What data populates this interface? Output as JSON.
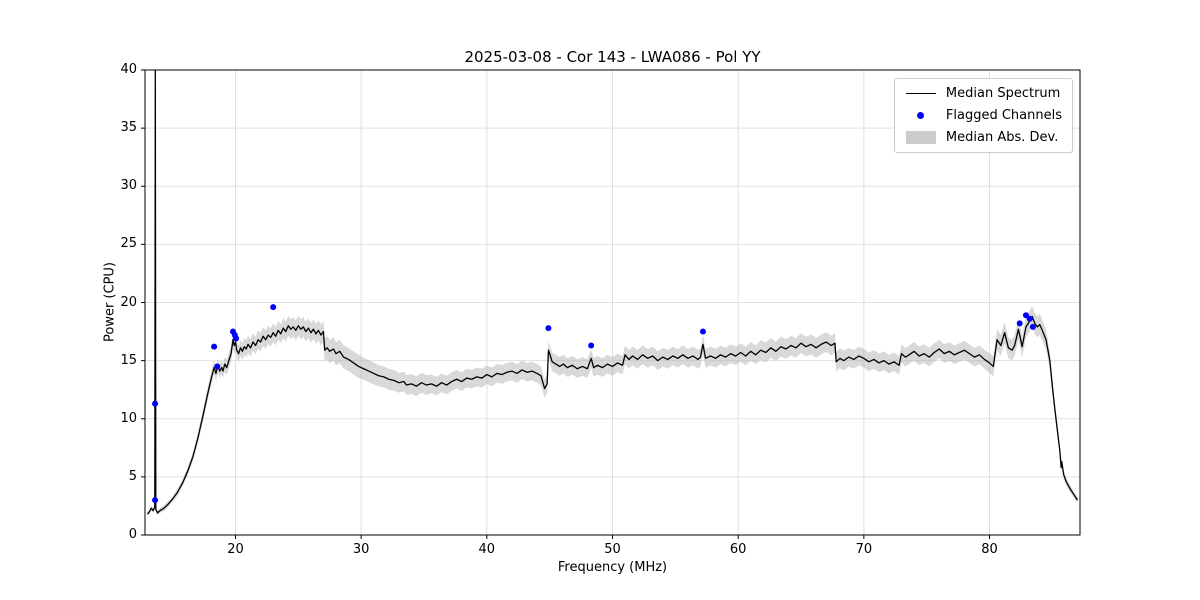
{
  "colors": {
    "line": "#000000",
    "flagged": "#0000ff",
    "band": "#b3b3b3",
    "band_opacity": 0.5,
    "grid": "#e0e0e0",
    "spine": "#000000",
    "background": "#ffffff"
  },
  "chart_data": {
    "type": "line",
    "title": "2025-03-08 - Cor 143 - LWA086 - Pol YY",
    "xlabel": "Frequency (MHz)",
    "ylabel": "Power (CPU)",
    "xlim": [
      12.8,
      87.2
    ],
    "ylim": [
      0,
      40
    ],
    "x_ticks": [
      20,
      30,
      40,
      50,
      60,
      70,
      80
    ],
    "y_ticks": [
      0,
      5,
      10,
      15,
      20,
      25,
      30,
      35,
      40
    ],
    "grid": true,
    "legend_position": "upper right",
    "legend_labels": [
      "Median Spectrum",
      "Flagged Channels",
      "Median Abs. Dev."
    ],
    "series_notes": "spectrum_points are [frequency_MHz, median_power_CPU, median_abs_dev]; flagged_points are [frequency_MHz, power_CPU]",
    "spectrum_points": [
      [
        13.0,
        1.8,
        0.2
      ],
      [
        13.15,
        2.0,
        0.2
      ],
      [
        13.3,
        2.3,
        0.2
      ],
      [
        13.45,
        2.1,
        0.2
      ],
      [
        13.58,
        2.4,
        0.2
      ],
      [
        13.62,
        40.0,
        0.2
      ],
      [
        13.66,
        2.2,
        0.2
      ],
      [
        13.8,
        1.9,
        0.2
      ],
      [
        14.0,
        2.1,
        0.2
      ],
      [
        14.3,
        2.3,
        0.25
      ],
      [
        14.6,
        2.6,
        0.25
      ],
      [
        15.0,
        3.1,
        0.25
      ],
      [
        15.4,
        3.7,
        0.3
      ],
      [
        15.8,
        4.5,
        0.3
      ],
      [
        16.2,
        5.5,
        0.35
      ],
      [
        16.6,
        6.7,
        0.4
      ],
      [
        17.0,
        8.3,
        0.45
      ],
      [
        17.4,
        10.2,
        0.5
      ],
      [
        17.8,
        12.2,
        0.55
      ],
      [
        18.1,
        13.6,
        0.6
      ],
      [
        18.3,
        14.4,
        0.6
      ],
      [
        18.45,
        13.9,
        0.6
      ],
      [
        18.6,
        14.6,
        0.6
      ],
      [
        18.75,
        14.1,
        0.6
      ],
      [
        18.9,
        14.4,
        0.6
      ],
      [
        19.0,
        14.1,
        0.6
      ],
      [
        19.15,
        14.7,
        0.65
      ],
      [
        19.3,
        14.4,
        0.65
      ],
      [
        19.5,
        15.1,
        0.7
      ],
      [
        19.65,
        15.6,
        0.7
      ],
      [
        19.8,
        16.8,
        0.7
      ],
      [
        19.9,
        16.3,
        0.7
      ],
      [
        20.0,
        16.6,
        0.7
      ],
      [
        20.1,
        15.9,
        0.7
      ],
      [
        20.25,
        15.6,
        0.7
      ],
      [
        20.4,
        16.1,
        0.7
      ],
      [
        20.55,
        15.8,
        0.75
      ],
      [
        20.7,
        16.2,
        0.75
      ],
      [
        20.85,
        16.0,
        0.75
      ],
      [
        21.0,
        16.4,
        0.75
      ],
      [
        21.2,
        16.1,
        0.75
      ],
      [
        21.4,
        16.6,
        0.75
      ],
      [
        21.6,
        16.3,
        0.75
      ],
      [
        21.8,
        16.8,
        0.8
      ],
      [
        22.0,
        16.6,
        0.8
      ],
      [
        22.2,
        17.1,
        0.8
      ],
      [
        22.4,
        16.8,
        0.8
      ],
      [
        22.6,
        17.2,
        0.8
      ],
      [
        22.8,
        17.0,
        0.8
      ],
      [
        23.0,
        17.4,
        0.8
      ],
      [
        23.2,
        17.1,
        0.8
      ],
      [
        23.4,
        17.6,
        0.8
      ],
      [
        23.6,
        17.3,
        0.8
      ],
      [
        23.8,
        17.8,
        0.85
      ],
      [
        24.0,
        17.5,
        0.85
      ],
      [
        24.2,
        18.0,
        0.85
      ],
      [
        24.4,
        17.7,
        0.85
      ],
      [
        24.6,
        17.9,
        0.85
      ],
      [
        24.8,
        17.6,
        0.85
      ],
      [
        25.0,
        18.0,
        0.85
      ],
      [
        25.2,
        17.7,
        0.85
      ],
      [
        25.4,
        17.9,
        0.85
      ],
      [
        25.6,
        17.5,
        0.85
      ],
      [
        25.8,
        17.8,
        0.85
      ],
      [
        26.0,
        17.4,
        0.85
      ],
      [
        26.2,
        17.7,
        0.85
      ],
      [
        26.4,
        17.3,
        0.85
      ],
      [
        26.6,
        17.6,
        0.85
      ],
      [
        26.8,
        17.2,
        0.9
      ],
      [
        27.0,
        17.5,
        0.9
      ],
      [
        27.1,
        15.9,
        1.0
      ],
      [
        27.3,
        16.1,
        1.0
      ],
      [
        27.5,
        15.8,
        1.0
      ],
      [
        27.8,
        16.0,
        1.0
      ],
      [
        28.0,
        15.6,
        1.0
      ],
      [
        28.3,
        15.8,
        1.0
      ],
      [
        28.6,
        15.3,
        1.0
      ],
      [
        29.0,
        15.1,
        1.0
      ],
      [
        29.4,
        14.8,
        1.0
      ],
      [
        29.8,
        14.5,
        1.0
      ],
      [
        30.2,
        14.3,
        0.95
      ],
      [
        30.6,
        14.1,
        0.95
      ],
      [
        31.0,
        13.9,
        0.95
      ],
      [
        31.4,
        13.7,
        0.9
      ],
      [
        31.8,
        13.6,
        0.9
      ],
      [
        32.2,
        13.4,
        0.9
      ],
      [
        32.6,
        13.3,
        0.9
      ],
      [
        33.0,
        13.1,
        0.85
      ],
      [
        33.4,
        13.2,
        0.85
      ],
      [
        33.6,
        12.9,
        0.85
      ],
      [
        34.0,
        13.0,
        0.85
      ],
      [
        34.4,
        12.8,
        0.85
      ],
      [
        34.8,
        13.1,
        0.85
      ],
      [
        35.2,
        12.9,
        0.85
      ],
      [
        35.6,
        13.0,
        0.8
      ],
      [
        36.0,
        12.8,
        0.8
      ],
      [
        36.4,
        13.1,
        0.8
      ],
      [
        36.8,
        12.9,
        0.8
      ],
      [
        37.2,
        13.2,
        0.8
      ],
      [
        37.6,
        13.4,
        0.8
      ],
      [
        38.0,
        13.2,
        0.8
      ],
      [
        38.4,
        13.5,
        0.8
      ],
      [
        38.8,
        13.4,
        0.8
      ],
      [
        39.2,
        13.6,
        0.8
      ],
      [
        39.6,
        13.5,
        0.8
      ],
      [
        40.0,
        13.8,
        0.8
      ],
      [
        40.4,
        13.6,
        0.8
      ],
      [
        40.8,
        13.9,
        0.8
      ],
      [
        41.2,
        13.8,
        0.8
      ],
      [
        41.6,
        14.0,
        0.8
      ],
      [
        42.0,
        14.1,
        0.8
      ],
      [
        42.4,
        13.9,
        0.8
      ],
      [
        42.8,
        14.2,
        0.8
      ],
      [
        43.2,
        14.0,
        0.8
      ],
      [
        43.6,
        14.1,
        0.8
      ],
      [
        44.0,
        13.9,
        0.8
      ],
      [
        44.3,
        13.7,
        0.8
      ],
      [
        44.6,
        12.6,
        0.8
      ],
      [
        44.8,
        13.0,
        0.8
      ],
      [
        44.9,
        15.9,
        0.8
      ],
      [
        45.0,
        15.6,
        0.8
      ],
      [
        45.2,
        14.9,
        0.8
      ],
      [
        45.5,
        14.7,
        0.8
      ],
      [
        45.8,
        14.5,
        0.8
      ],
      [
        46.1,
        14.7,
        0.8
      ],
      [
        46.4,
        14.4,
        0.8
      ],
      [
        46.8,
        14.6,
        0.8
      ],
      [
        47.2,
        14.3,
        0.8
      ],
      [
        47.6,
        14.5,
        0.8
      ],
      [
        48.0,
        14.3,
        0.8
      ],
      [
        48.3,
        15.2,
        0.8
      ],
      [
        48.5,
        14.4,
        0.8
      ],
      [
        48.8,
        14.6,
        0.8
      ],
      [
        49.2,
        14.4,
        0.8
      ],
      [
        49.6,
        14.7,
        0.8
      ],
      [
        50.0,
        14.5,
        0.8
      ],
      [
        50.4,
        14.8,
        0.8
      ],
      [
        50.8,
        14.6,
        0.8
      ],
      [
        51.0,
        15.5,
        0.8
      ],
      [
        51.3,
        15.1,
        0.8
      ],
      [
        51.6,
        15.4,
        0.8
      ],
      [
        52.0,
        15.1,
        0.8
      ],
      [
        52.4,
        15.5,
        0.8
      ],
      [
        52.8,
        15.2,
        0.8
      ],
      [
        53.2,
        15.4,
        0.8
      ],
      [
        53.6,
        15.0,
        0.8
      ],
      [
        54.0,
        15.3,
        0.8
      ],
      [
        54.4,
        15.1,
        0.8
      ],
      [
        54.8,
        15.4,
        0.8
      ],
      [
        55.2,
        15.2,
        0.8
      ],
      [
        55.6,
        15.5,
        0.8
      ],
      [
        56.0,
        15.2,
        0.8
      ],
      [
        56.4,
        15.4,
        0.8
      ],
      [
        56.8,
        15.1,
        0.8
      ],
      [
        57.0,
        15.3,
        0.8
      ],
      [
        57.2,
        16.4,
        0.8
      ],
      [
        57.4,
        15.2,
        0.8
      ],
      [
        57.8,
        15.4,
        0.8
      ],
      [
        58.2,
        15.2,
        0.8
      ],
      [
        58.6,
        15.5,
        0.8
      ],
      [
        59.0,
        15.3,
        0.8
      ],
      [
        59.4,
        15.6,
        0.8
      ],
      [
        59.8,
        15.4,
        0.8
      ],
      [
        60.2,
        15.7,
        0.8
      ],
      [
        60.6,
        15.4,
        0.8
      ],
      [
        61.0,
        15.8,
        0.8
      ],
      [
        61.4,
        15.5,
        0.8
      ],
      [
        61.8,
        15.9,
        0.85
      ],
      [
        62.2,
        15.7,
        0.85
      ],
      [
        62.6,
        16.1,
        0.85
      ],
      [
        63.0,
        15.8,
        0.85
      ],
      [
        63.4,
        16.2,
        0.85
      ],
      [
        63.8,
        16.0,
        0.85
      ],
      [
        64.2,
        16.3,
        0.85
      ],
      [
        64.6,
        16.1,
        0.85
      ],
      [
        65.0,
        16.5,
        0.85
      ],
      [
        65.4,
        16.2,
        0.85
      ],
      [
        65.8,
        16.4,
        0.85
      ],
      [
        66.2,
        16.1,
        0.85
      ],
      [
        66.6,
        16.4,
        0.85
      ],
      [
        67.0,
        16.6,
        0.85
      ],
      [
        67.4,
        16.3,
        0.85
      ],
      [
        67.7,
        16.5,
        0.85
      ],
      [
        67.8,
        14.9,
        0.85
      ],
      [
        68.1,
        15.2,
        0.85
      ],
      [
        68.4,
        15.0,
        0.85
      ],
      [
        68.8,
        15.3,
        0.8
      ],
      [
        69.2,
        15.1,
        0.8
      ],
      [
        69.6,
        15.4,
        0.8
      ],
      [
        70.0,
        15.2,
        0.8
      ],
      [
        70.4,
        14.9,
        0.8
      ],
      [
        70.8,
        15.1,
        0.8
      ],
      [
        71.2,
        14.8,
        0.8
      ],
      [
        71.6,
        15.0,
        0.8
      ],
      [
        72.0,
        14.7,
        0.8
      ],
      [
        72.4,
        14.9,
        0.8
      ],
      [
        72.8,
        14.6,
        0.8
      ],
      [
        73.0,
        15.6,
        0.8
      ],
      [
        73.3,
        15.3,
        0.8
      ],
      [
        73.6,
        15.5,
        0.8
      ],
      [
        74.0,
        15.8,
        0.8
      ],
      [
        74.4,
        15.4,
        0.8
      ],
      [
        74.8,
        15.6,
        0.8
      ],
      [
        75.2,
        15.3,
        0.8
      ],
      [
        75.6,
        15.7,
        0.8
      ],
      [
        76.0,
        16.0,
        0.8
      ],
      [
        76.4,
        15.6,
        0.8
      ],
      [
        76.8,
        15.8,
        0.8
      ],
      [
        77.2,
        15.5,
        0.8
      ],
      [
        77.6,
        15.7,
        0.8
      ],
      [
        78.0,
        15.9,
        0.8
      ],
      [
        78.4,
        15.6,
        0.8
      ],
      [
        78.8,
        15.3,
        0.8
      ],
      [
        79.2,
        15.5,
        0.8
      ],
      [
        79.6,
        15.1,
        0.8
      ],
      [
        80.0,
        14.8,
        0.85
      ],
      [
        80.3,
        14.5,
        0.85
      ],
      [
        80.6,
        16.8,
        0.9
      ],
      [
        80.9,
        16.3,
        0.9
      ],
      [
        81.2,
        17.4,
        0.9
      ],
      [
        81.5,
        16.1,
        0.9
      ],
      [
        81.8,
        15.9,
        0.9
      ],
      [
        82.0,
        16.3,
        0.9
      ],
      [
        82.3,
        17.7,
        0.9
      ],
      [
        82.6,
        16.2,
        0.9
      ],
      [
        82.9,
        17.9,
        0.9
      ],
      [
        83.2,
        18.4,
        0.9
      ],
      [
        83.4,
        18.8,
        0.9
      ],
      [
        83.6,
        18.2,
        0.9
      ],
      [
        83.8,
        17.9,
        0.9
      ],
      [
        84.0,
        18.1,
        0.9
      ],
      [
        84.2,
        17.6,
        0.9
      ],
      [
        84.5,
        16.8,
        0.85
      ],
      [
        84.8,
        15.0,
        0.8
      ],
      [
        85.0,
        12.8,
        0.7
      ],
      [
        85.2,
        10.8,
        0.6
      ],
      [
        85.4,
        9.0,
        0.5
      ],
      [
        85.6,
        7.2,
        0.45
      ],
      [
        85.7,
        5.8,
        0.4
      ],
      [
        85.75,
        6.3,
        0.4
      ],
      [
        85.9,
        5.2,
        0.4
      ],
      [
        86.1,
        4.6,
        0.35
      ],
      [
        86.4,
        4.0,
        0.3
      ],
      [
        86.7,
        3.5,
        0.3
      ],
      [
        87.0,
        3.0,
        0.3
      ]
    ],
    "flagged_points": [
      [
        13.6,
        11.3
      ],
      [
        13.6,
        3.0
      ],
      [
        18.3,
        16.2
      ],
      [
        18.55,
        14.5
      ],
      [
        19.8,
        17.5
      ],
      [
        19.95,
        17.2
      ],
      [
        20.05,
        16.9
      ],
      [
        23.0,
        19.6
      ],
      [
        44.9,
        17.8
      ],
      [
        48.3,
        16.3
      ],
      [
        57.2,
        17.5
      ],
      [
        82.4,
        18.2
      ],
      [
        82.9,
        18.9
      ],
      [
        83.2,
        18.6
      ],
      [
        83.45,
        17.9
      ]
    ]
  }
}
